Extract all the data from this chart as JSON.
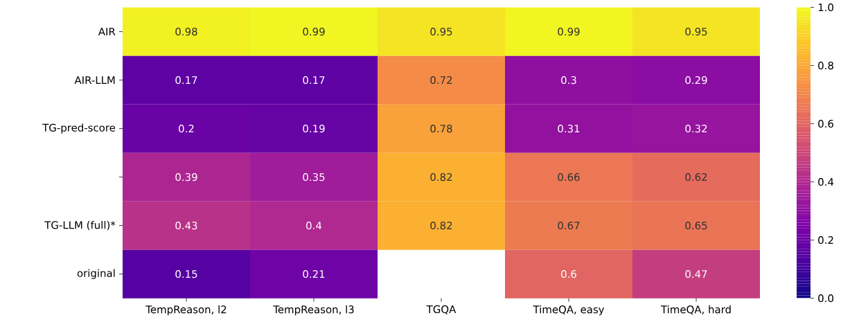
{
  "chart_data": {
    "type": "heatmap",
    "categories": [
      "TempReason, l2",
      "TempReason, l3",
      "TGQA",
      "TimeQA, easy",
      "TimeQA, hard"
    ],
    "y_categories": [
      "AIR",
      "AIR-LLM",
      "TG-pred-score",
      null,
      "TG-LLM (full)*",
      "original"
    ],
    "cells": [
      [
        0.98,
        0.99,
        0.95,
        0.99,
        0.95
      ],
      [
        0.17,
        0.17,
        0.72,
        0.3,
        0.29
      ],
      [
        0.2,
        0.19,
        0.78,
        0.31,
        0.32
      ],
      [
        0.39,
        0.35,
        0.82,
        0.66,
        0.62
      ],
      [
        0.43,
        0.4,
        0.82,
        0.67,
        0.65
      ],
      [
        0.15,
        0.21,
        null,
        0.6,
        0.47
      ]
    ],
    "data_labels": true,
    "clim": [
      0.0,
      1.0
    ],
    "cticks": [
      {
        "value": 0.0,
        "label": "0.0"
      },
      {
        "value": 0.2,
        "label": "0.2"
      },
      {
        "value": 0.4,
        "label": "0.4"
      },
      {
        "value": 0.6,
        "label": "0.6"
      },
      {
        "value": 0.8,
        "label": "0.8"
      },
      {
        "value": 1.0,
        "label": "1.0"
      }
    ]
  }
}
